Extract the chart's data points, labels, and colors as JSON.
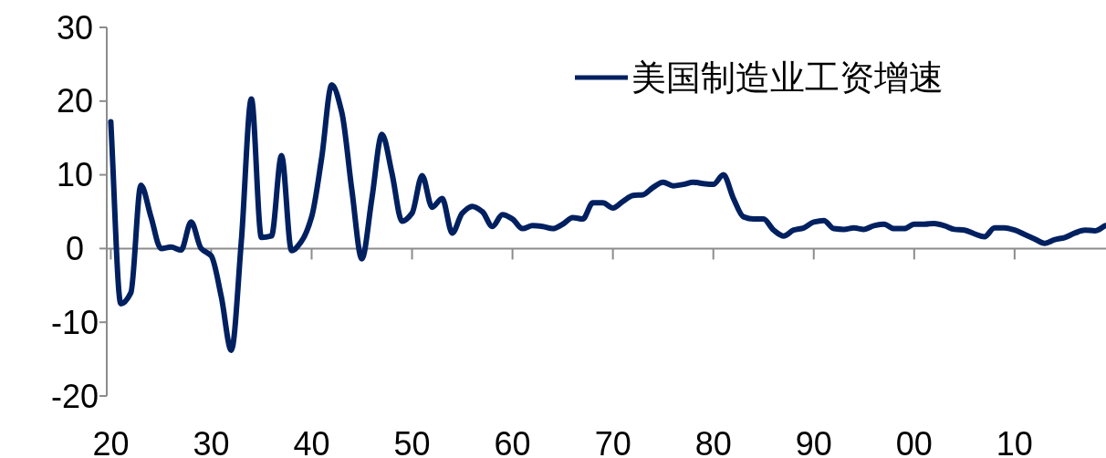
{
  "chart_data": {
    "type": "line",
    "legend": "top right",
    "line_style": "solid",
    "x": [
      1920,
      1921,
      1922,
      1923,
      1924,
      1925,
      1926,
      1927,
      1928,
      1929,
      1930,
      1931,
      1932,
      1933,
      1934,
      1935,
      1936,
      1937,
      1938,
      1939,
      1940,
      1941,
      1942,
      1943,
      1944,
      1945,
      1946,
      1947,
      1948,
      1949,
      1950,
      1951,
      1952,
      1953,
      1954,
      1955,
      1956,
      1957,
      1958,
      1959,
      1960,
      1961,
      1962,
      1963,
      1964,
      1965,
      1966,
      1967,
      1968,
      1969,
      1970,
      1971,
      1972,
      1973,
      1974,
      1975,
      1976,
      1977,
      1978,
      1979,
      1980,
      1981,
      1982,
      1983,
      1984,
      1985,
      1986,
      1987,
      1988,
      1989,
      1990,
      1991,
      1992,
      1993,
      1994,
      1995,
      1996,
      1997,
      1998,
      1999,
      2000,
      2001,
      2002,
      2003,
      2004,
      2005,
      2006,
      2007,
      2008,
      2009,
      2010,
      2011,
      2012,
      2013,
      2014,
      2015,
      2016,
      2017,
      2018,
      2019
    ],
    "series": [
      {
        "name": "美国制造业工资增速",
        "color": "#002060",
        "values": [
          17.2,
          -7.5,
          -6,
          8.6,
          4.3,
          0,
          0.2,
          -0.2,
          3.6,
          0,
          -1,
          -6.5,
          -13.8,
          1,
          20.3,
          1.5,
          1.7,
          12.6,
          -0.3,
          1.0,
          4.3,
          12.3,
          22.2,
          18.5,
          8,
          -1.4,
          6.8,
          15.5,
          10.2,
          3.7,
          4.8,
          9.9,
          5.6,
          6.8,
          2.1,
          4.8,
          5.7,
          5,
          3,
          4.6,
          4.0,
          2.7,
          3.1,
          3.0,
          2.7,
          3.3,
          4.2,
          4.0,
          6.2,
          6.2,
          5.5,
          6.4,
          7.2,
          7.3,
          8.3,
          9.0,
          8.5,
          8.7,
          9.0,
          8.8,
          8.7,
          10.0,
          6.8,
          4.3,
          4.0,
          4.0,
          2.5,
          1.7,
          2.5,
          2.8,
          3.6,
          3.8,
          2.7,
          2.6,
          2.8,
          2.6,
          3.1,
          3.3,
          2.7,
          2.7,
          3.3,
          3.3,
          3.4,
          3.1,
          2.6,
          2.5,
          2.0,
          1.6,
          2.8,
          2.8,
          2.5,
          1.9,
          1.3,
          0.7,
          1.2,
          1.5,
          2.1,
          2.5,
          2.4,
          3.1
        ]
      }
    ],
    "xlim": [
      1919.6,
      2019.1
    ],
    "xticks": [
      {
        "value": 1920,
        "label": "20"
      },
      {
        "value": 1930,
        "label": "30"
      },
      {
        "value": 1940,
        "label": "40"
      },
      {
        "value": 1950,
        "label": "50"
      },
      {
        "value": 1960,
        "label": "60"
      },
      {
        "value": 1970,
        "label": "70"
      },
      {
        "value": 1980,
        "label": "80"
      },
      {
        "value": 1990,
        "label": "90"
      },
      {
        "value": 2000,
        "label": "00"
      },
      {
        "value": 2010,
        "label": "10"
      }
    ],
    "ylim": [
      -20,
      30
    ],
    "yticks": [
      -20,
      -10,
      0,
      10,
      20,
      30
    ]
  }
}
